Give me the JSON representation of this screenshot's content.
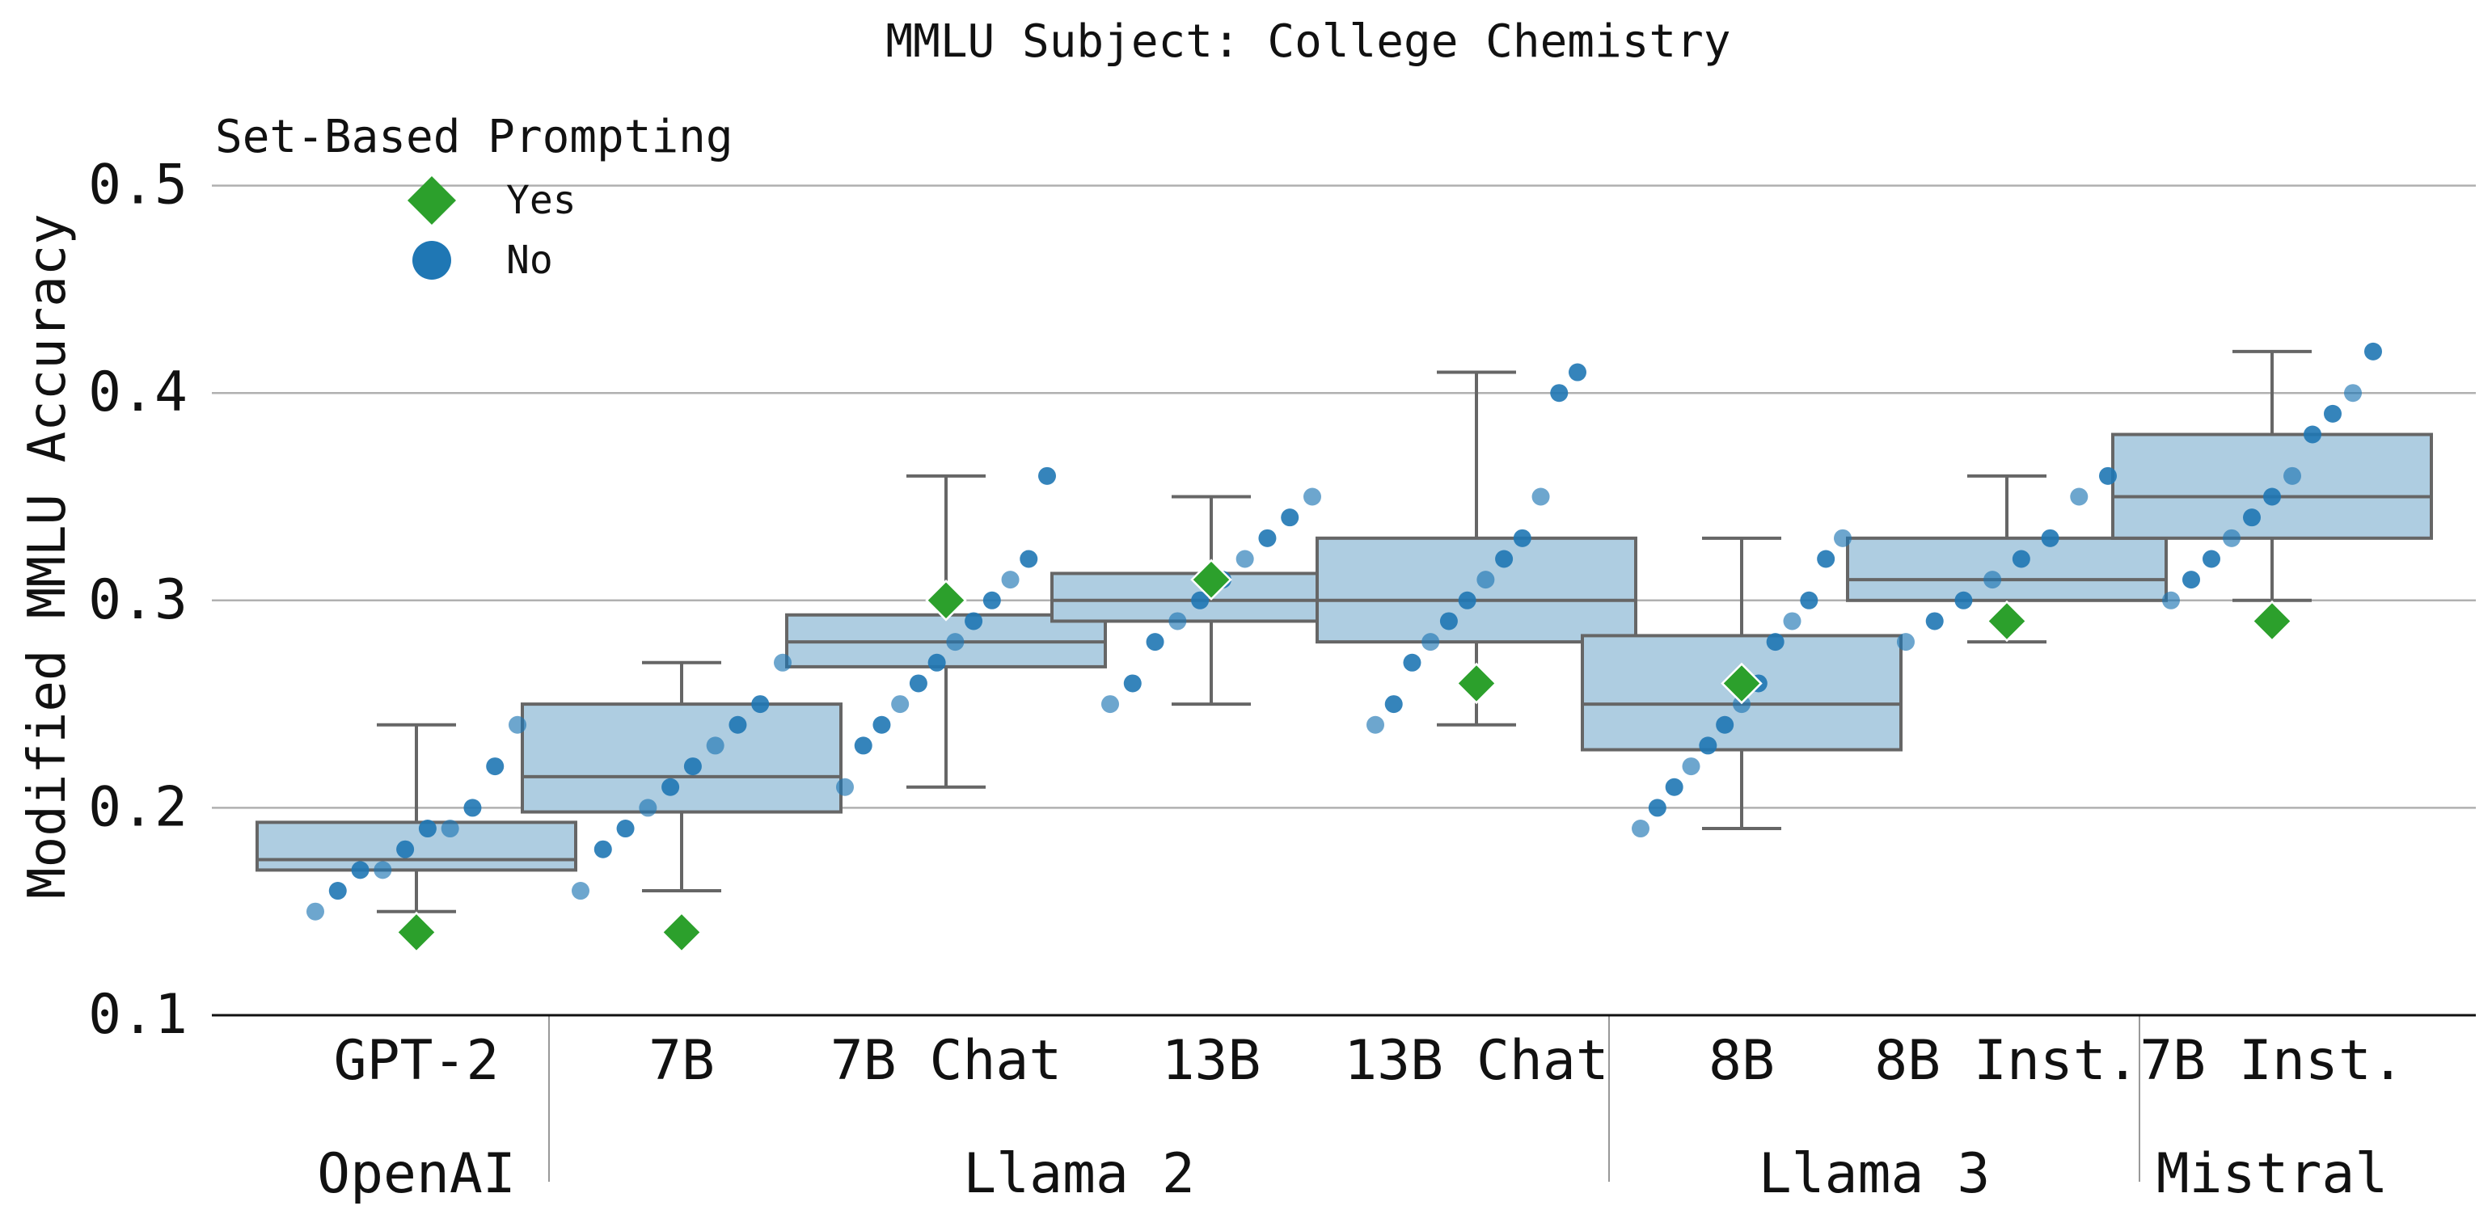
{
  "chart_data": {
    "type": "box",
    "title": "MMLU Subject: College Chemistry",
    "xlabel": "",
    "ylabel": "Modified MMLU Accuracy",
    "ylim": [
      0.1,
      0.52
    ],
    "yticks": [
      "0.1",
      "0.2",
      "0.3",
      "0.4",
      "0.5"
    ],
    "ytick_values": [
      0.1,
      0.2,
      0.3,
      0.4,
      0.5
    ],
    "grid": "horizontal",
    "legend": {
      "title": "Set-Based Prompting",
      "placement": "top-left",
      "entries": [
        {
          "label": "Yes",
          "color": "#2ca02c",
          "marker": "diamond"
        },
        {
          "label": "No",
          "color": "#1f77b4",
          "marker": "circle"
        }
      ]
    },
    "colors": {
      "box_fill": "#aecde1",
      "box_edge": "#666666",
      "yes": "#2ca02c",
      "no": "#1f77b4",
      "grid": "#b0b0b0"
    },
    "categories": [
      "GPT-2",
      "7B",
      "7B Chat",
      "13B",
      "13B Chat",
      "8B",
      "8B Inst.",
      "7B Inst."
    ],
    "groups": [
      {
        "label": "OpenAI",
        "from": 0,
        "to": 0
      },
      {
        "label": "Llama 2",
        "from": 1,
        "to": 4
      },
      {
        "label": "Llama 3",
        "from": 5,
        "to": 6
      },
      {
        "label": "Mistral",
        "from": 7,
        "to": 7
      }
    ],
    "boxes": [
      {
        "category": "GPT-2",
        "whislo": 0.15,
        "q1": 0.17,
        "med": 0.175,
        "q3": 0.193,
        "whishi": 0.24,
        "yes": 0.14,
        "no": [
          0.15,
          0.16,
          0.17,
          0.17,
          0.18,
          0.19,
          0.19,
          0.2,
          0.22,
          0.24
        ]
      },
      {
        "category": "7B",
        "whislo": 0.16,
        "q1": 0.198,
        "med": 0.215,
        "q3": 0.25,
        "whishi": 0.27,
        "yes": 0.14,
        "no": [
          0.16,
          0.18,
          0.19,
          0.2,
          0.21,
          0.22,
          0.23,
          0.24,
          0.25,
          0.27
        ]
      },
      {
        "category": "7B Chat",
        "whislo": 0.21,
        "q1": 0.268,
        "med": 0.28,
        "q3": 0.293,
        "whishi": 0.36,
        "yes": 0.3,
        "no": [
          0.21,
          0.23,
          0.24,
          0.25,
          0.26,
          0.27,
          0.28,
          0.29,
          0.3,
          0.31,
          0.32,
          0.36
        ]
      },
      {
        "category": "13B",
        "whislo": 0.25,
        "q1": 0.29,
        "med": 0.3,
        "q3": 0.313,
        "whishi": 0.35,
        "yes": 0.31,
        "no": [
          0.25,
          0.26,
          0.28,
          0.29,
          0.3,
          0.31,
          0.32,
          0.33,
          0.34,
          0.35
        ]
      },
      {
        "category": "13B Chat",
        "whislo": 0.24,
        "q1": 0.28,
        "med": 0.3,
        "q3": 0.33,
        "whishi": 0.41,
        "yes": 0.26,
        "no": [
          0.24,
          0.25,
          0.27,
          0.28,
          0.29,
          0.3,
          0.31,
          0.32,
          0.33,
          0.35,
          0.4,
          0.41
        ]
      },
      {
        "category": "8B",
        "whislo": 0.19,
        "q1": 0.228,
        "med": 0.25,
        "q3": 0.283,
        "whishi": 0.33,
        "yes": 0.26,
        "no": [
          0.19,
          0.2,
          0.21,
          0.22,
          0.23,
          0.24,
          0.25,
          0.26,
          0.28,
          0.29,
          0.3,
          0.32,
          0.33
        ]
      },
      {
        "category": "8B Inst.",
        "whislo": 0.28,
        "q1": 0.3,
        "med": 0.31,
        "q3": 0.33,
        "whishi": 0.36,
        "yes": 0.29,
        "no": [
          0.28,
          0.29,
          0.3,
          0.31,
          0.32,
          0.33,
          0.35,
          0.36
        ]
      },
      {
        "category": "7B Inst.",
        "whislo": 0.3,
        "q1": 0.33,
        "med": 0.35,
        "q3": 0.38,
        "whishi": 0.42,
        "yes": 0.29,
        "no": [
          0.3,
          0.31,
          0.32,
          0.33,
          0.34,
          0.35,
          0.36,
          0.38,
          0.39,
          0.4,
          0.42
        ]
      }
    ]
  }
}
